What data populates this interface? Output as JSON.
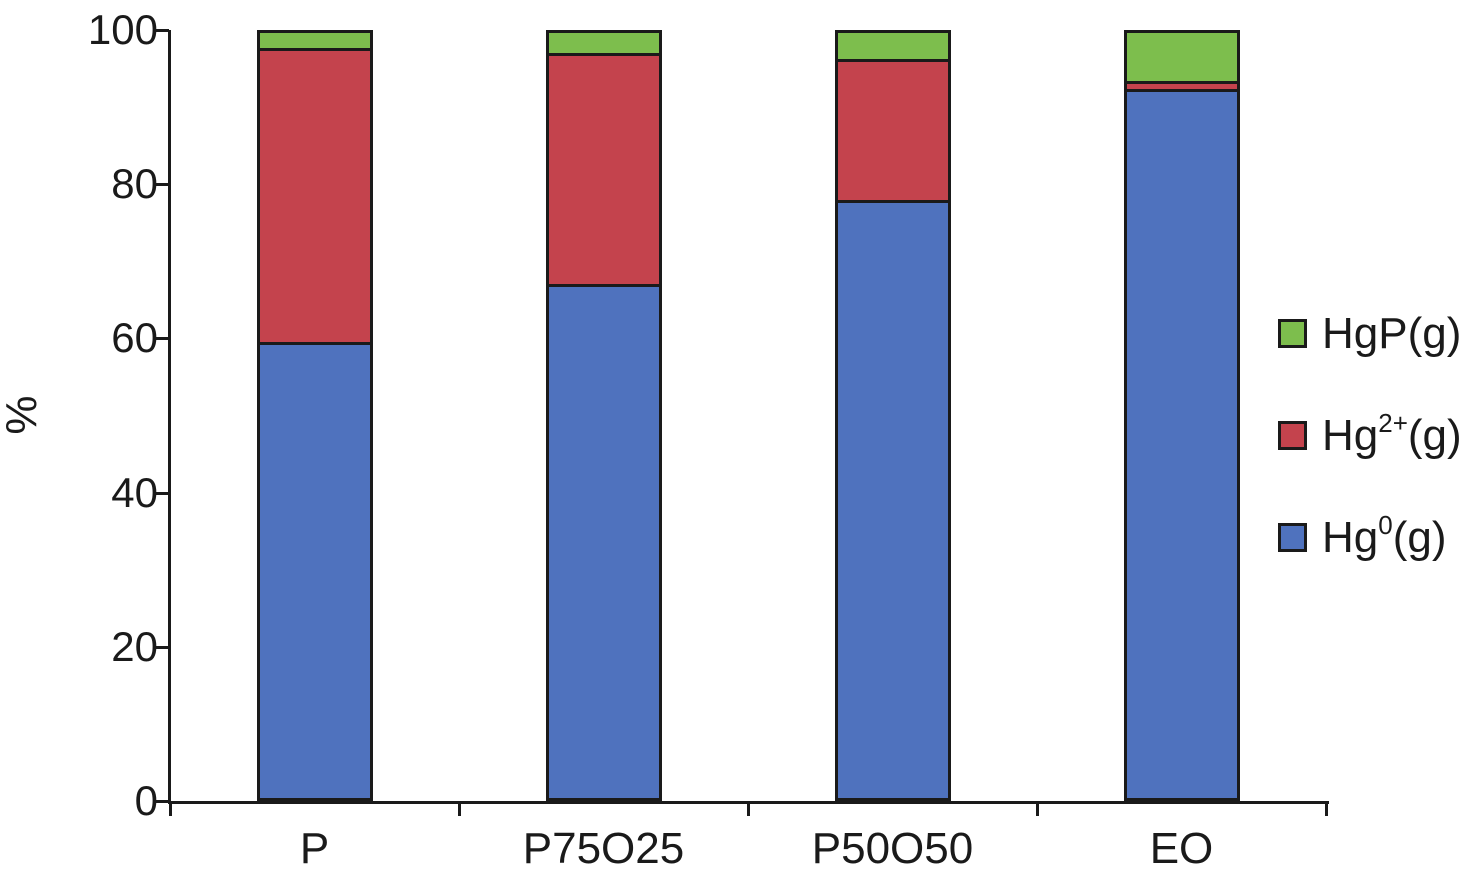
{
  "figure": {
    "ylabel": "%"
  },
  "chart_data": {
    "type": "bar",
    "stacked": true,
    "title": "",
    "xlabel": "",
    "ylabel": "%",
    "ylim": [
      0,
      100
    ],
    "yticks": [
      0,
      20,
      40,
      60,
      80,
      100
    ],
    "grid": false,
    "legend_position": "right",
    "legend_order_top_to_bottom": [
      "HgP(g)",
      "Hg2+(g)",
      "Hg0(g)"
    ],
    "axis_color": "#1a1a1a",
    "bar_outline_color": "#1a1a1a",
    "categories": [
      "P",
      "P75O25",
      "P50O50",
      "EO"
    ],
    "series": [
      {
        "name": "Hg0(g)",
        "label_pre": "Hg",
        "label_sup": "0",
        "label_post": "(g)",
        "color": "#4F72BE",
        "values": [
          59.5,
          67.0,
          78.0,
          92.3
        ]
      },
      {
        "name": "Hg2+(g)",
        "label_pre": "Hg",
        "label_sup": "2+",
        "label_post": "(g)",
        "color": "#C4434D",
        "values": [
          38.2,
          30.0,
          18.2,
          1.1
        ]
      },
      {
        "name": "HgP(g)",
        "label_pre": "HgP(g)",
        "label_sup": "",
        "label_post": "",
        "color": "#7DBE4D",
        "values": [
          2.3,
          3.0,
          3.8,
          6.6
        ]
      }
    ]
  }
}
